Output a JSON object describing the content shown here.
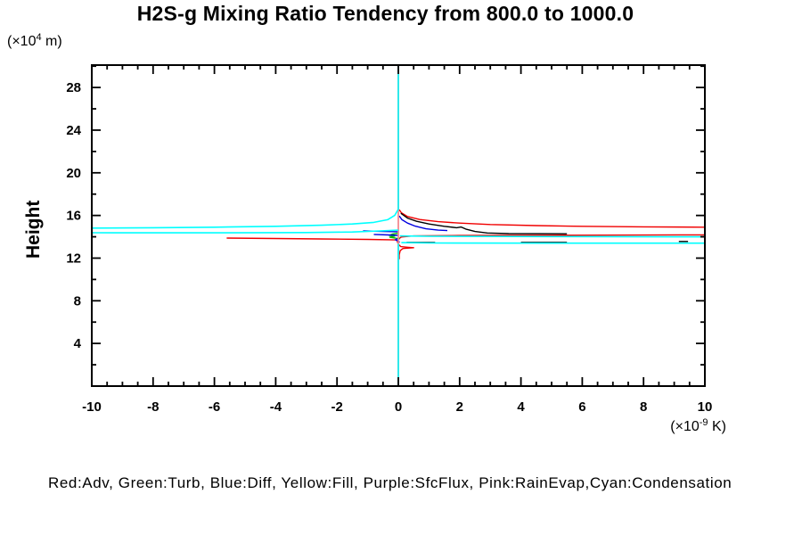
{
  "title": "H2S-g Mixing Ratio Tendency from 800.0 to 1000.0",
  "legend": "Red:Adv, Green:Turb, Blue:Diff, Yellow:Fill, Purple:SfcFlux, Pink:RainEvap,Cyan:Condensation",
  "y_axis": {
    "label": "Height",
    "unit_prefix": "(×10",
    "unit_sup": "4",
    "unit_suffix": " m)"
  },
  "x_axis": {
    "unit_prefix": "(×10",
    "unit_sup": "-9",
    "unit_suffix": " K)"
  },
  "chart_data": {
    "type": "line",
    "title": "H2S-g Mixing Ratio Tendency from 800.0 to 1000.0",
    "xlabel": "(×10^-9 K)",
    "ylabel": "Height (×10^4 m)",
    "xlim": [
      -10,
      10
    ],
    "ylim": [
      0,
      30.1
    ],
    "grid": false,
    "x_ticks": {
      "major": [
        -10,
        -8,
        -6,
        -4,
        -2,
        0,
        2,
        4,
        6,
        8,
        10
      ],
      "labels": [
        "-10",
        "-8",
        "-6",
        "-4",
        "-2",
        "0",
        "2",
        "4",
        "6",
        "8",
        "10"
      ],
      "minor_step": 0.5
    },
    "y_ticks": {
      "major": [
        4,
        8,
        12,
        16,
        20,
        24,
        28
      ],
      "labels": [
        "4",
        "8",
        "12",
        "16",
        "20",
        "24",
        "28"
      ],
      "minor_step": 2
    },
    "series": [
      {
        "name": "fill",
        "legend": "Yellow:Fill",
        "color": "#ffff00",
        "width": 1.5,
        "segments": [
          [
            [
              0,
              30.1
            ],
            [
              0,
              0
            ]
          ]
        ]
      },
      {
        "name": "sfcflux",
        "legend": "Purple:SfcFlux",
        "color": "#aa00aa",
        "width": 1.5,
        "segments": [
          [
            [
              0,
              30.1
            ],
            [
              0,
              0
            ]
          ]
        ]
      },
      {
        "name": "adv",
        "legend": "Red:Adv",
        "color": "#f00000",
        "width": 1.4,
        "segments": [
          [
            [
              0.03,
              16.55
            ],
            [
              0.1,
              16.25
            ],
            [
              0.3,
              15.9
            ],
            [
              0.7,
              15.62
            ],
            [
              1.3,
              15.42
            ],
            [
              2,
              15.28
            ],
            [
              3,
              15.15
            ],
            [
              4.5,
              15.05
            ],
            [
              6,
              14.98
            ],
            [
              8,
              14.93
            ],
            [
              10,
              14.9
            ]
          ],
          [
            [
              10,
              14.18
            ],
            [
              5,
              14.15
            ],
            [
              2,
              14.12
            ],
            [
              0.5,
              14.08
            ],
            [
              0.1,
              13.98
            ],
            [
              0.03,
              13.85
            ]
          ],
          [
            [
              -5.6,
              13.88
            ],
            [
              -4,
              13.84
            ],
            [
              -2.5,
              13.8
            ],
            [
              -1,
              13.75
            ],
            [
              -0.05,
              13.7
            ]
          ],
          [
            [
              -0.05,
              13.7
            ],
            [
              0,
              13.3
            ],
            [
              0.08,
              13.08
            ],
            [
              0.3,
              13.02
            ],
            [
              0.5,
              12.98
            ],
            [
              0.15,
              12.9
            ],
            [
              0.06,
              12.7
            ],
            [
              0.03,
              12.3
            ],
            [
              0.03,
              11.9
            ]
          ]
        ]
      },
      {
        "name": "total",
        "legend": "",
        "color": "#000000",
        "width": 1.4,
        "segments": [
          [
            [
              0.08,
              16.2
            ],
            [
              0.3,
              15.75
            ],
            [
              0.6,
              15.45
            ],
            [
              1.0,
              15.2
            ],
            [
              1.5,
              14.98
            ],
            [
              1.9,
              14.85
            ],
            [
              2.05,
              14.92
            ],
            [
              2.2,
              14.72
            ],
            [
              2.5,
              14.5
            ],
            [
              2.9,
              14.36
            ],
            [
              3.6,
              14.3
            ],
            [
              5.5,
              14.28
            ]
          ],
          [
            [
              0.27,
              13.48
            ],
            [
              1.2,
              13.46
            ]
          ],
          [
            [
              4.0,
              13.48
            ],
            [
              5.5,
              13.48
            ]
          ],
          [
            [
              9.15,
              13.56
            ],
            [
              9.45,
              13.56
            ]
          ]
        ]
      },
      {
        "name": "turb",
        "legend": "Green:Turb",
        "color": "#00bb00",
        "width": 1.4,
        "segments": [
          [
            [
              0,
              14.35
            ],
            [
              -0.18,
              14.26
            ],
            [
              -0.3,
              14.14
            ],
            [
              -0.12,
              14.06
            ],
            [
              -0.28,
              13.96
            ],
            [
              -0.1,
              13.88
            ],
            [
              0.05,
              13.8
            ]
          ]
        ]
      },
      {
        "name": "diff",
        "legend": "Blue:Diff",
        "color": "#0000e0",
        "width": 1.4,
        "segments": [
          [
            [
              0.03,
              15.95
            ],
            [
              0.12,
              15.6
            ],
            [
              0.3,
              15.28
            ],
            [
              0.55,
              15.0
            ],
            [
              0.9,
              14.75
            ],
            [
              1.3,
              14.62
            ],
            [
              1.6,
              14.58
            ]
          ],
          [
            [
              -1.15,
              14.55
            ],
            [
              -0.5,
              14.5
            ],
            [
              0,
              14.47
            ]
          ],
          [
            [
              -0.8,
              14.22
            ],
            [
              -0.3,
              14.17
            ],
            [
              0,
              14.13
            ]
          ],
          [
            [
              0,
              13.85
            ],
            [
              -0.1,
              13.72
            ],
            [
              0,
              13.6
            ],
            [
              0.04,
              13.48
            ]
          ]
        ]
      },
      {
        "name": "rainevap",
        "legend": "Pink:RainEvap",
        "color": "#ff9c9c",
        "width": 1.5,
        "segments": [
          [
            [
              0,
              30.1
            ],
            [
              0,
              0
            ]
          ]
        ]
      },
      {
        "name": "condensation",
        "legend": "Cyan:Condensation",
        "color": "#00ffff",
        "width": 1.6,
        "segments": [
          [
            [
              0,
              30.1
            ],
            [
              0,
              16.6
            ],
            [
              -0.12,
              16.0
            ],
            [
              -0.35,
              15.6
            ],
            [
              -0.8,
              15.35
            ],
            [
              -1.5,
              15.2
            ],
            [
              -2.5,
              15.08
            ],
            [
              -4,
              14.98
            ],
            [
              -6,
              14.9
            ],
            [
              -8,
              14.85
            ],
            [
              -10,
              14.82
            ]
          ],
          [
            [
              -10,
              14.38
            ],
            [
              -6,
              14.37
            ],
            [
              -3,
              14.4
            ],
            [
              -1.5,
              14.45
            ],
            [
              -0.6,
              14.55
            ],
            [
              0,
              14.62
            ]
          ],
          [
            [
              0.05,
              14.08
            ],
            [
              1,
              14.05
            ],
            [
              5,
              14.02
            ],
            [
              10,
              14.0
            ]
          ],
          [
            [
              0.1,
              13.45
            ],
            [
              1,
              13.42
            ],
            [
              5,
              13.4
            ],
            [
              10,
              13.4
            ]
          ],
          [
            [
              0,
              13.35
            ],
            [
              0,
              0
            ]
          ]
        ]
      }
    ]
  }
}
